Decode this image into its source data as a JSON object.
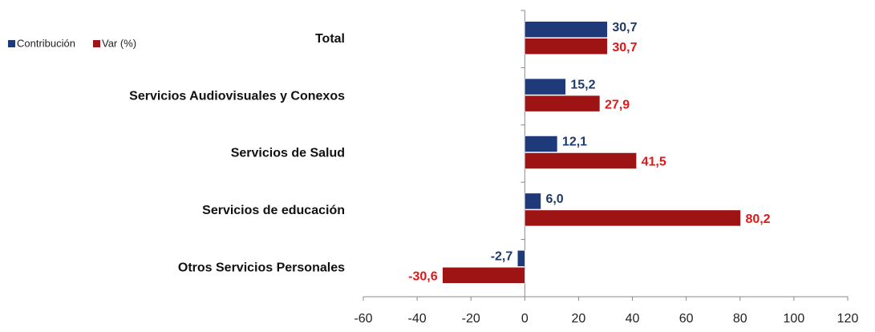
{
  "chart_data": {
    "type": "hbar",
    "categories": [
      "Total",
      "Servicios Audiovisuales y Conexos",
      "Servicios de Salud",
      "Servicios de educación",
      "Otros Servicios Personales"
    ],
    "series": [
      {
        "name": "Contribución",
        "color": "#1f3a7a",
        "label_color": "#1f3a6a",
        "values": [
          30.7,
          15.2,
          12.1,
          6.0,
          -2.7
        ],
        "value_labels": [
          "30,7",
          "15,2",
          "12,1",
          "6,0",
          "-2,7"
        ]
      },
      {
        "name": "Var (%)",
        "color": "#9e1414",
        "label_color": "#e01818",
        "values": [
          30.7,
          27.9,
          41.5,
          80.2,
          -30.6
        ],
        "value_labels": [
          "30,7",
          "27,9",
          "41,5",
          "80,2",
          "-30,6"
        ]
      }
    ],
    "xlim": [
      -60,
      120
    ],
    "xticks": [
      -60,
      -40,
      -20,
      0,
      20,
      40,
      60,
      80,
      100,
      120
    ]
  }
}
